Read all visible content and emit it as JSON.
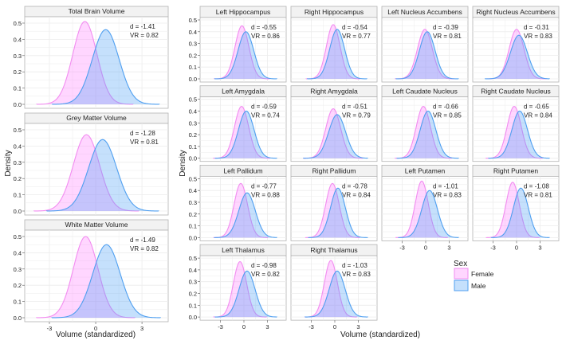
{
  "chart_data": {
    "type": "area",
    "subtype": "density, faceted",
    "xlabel": "Volume (standardized)",
    "ylabel": "Density",
    "x_ticks": [
      "-3",
      "0",
      "3"
    ],
    "y_ticks": [
      "0.0",
      "0.1",
      "0.2",
      "0.3",
      "0.4",
      "0.5"
    ],
    "ylim": [
      0,
      0.55
    ],
    "grid": true,
    "legend": {
      "title": "Sex",
      "placement": "bottom-right",
      "entries": [
        {
          "name": "Female",
          "fill": "#ff80ff",
          "stroke": "#f28cf0"
        },
        {
          "name": "Male",
          "fill": "#4aa0f5",
          "stroke": "#4f9ff0"
        }
      ]
    },
    "global_panels": [
      {
        "title": "Total Brain Volume",
        "d": "d = -1.41",
        "vr": "VR = 0.82",
        "female": {
          "mode": -0.7,
          "peak": 0.51
        },
        "male": {
          "mode": 0.65,
          "peak": 0.46
        }
      },
      {
        "title": "Grey Matter Volume",
        "d": "d = -1.28",
        "vr": "VR = 0.81",
        "female": {
          "mode": -0.6,
          "peak": 0.47
        },
        "male": {
          "mode": 0.45,
          "peak": 0.44
        }
      },
      {
        "title": "White Matter Volume",
        "d": "d = -1.49",
        "vr": "VR = 0.82",
        "female": {
          "mode": -0.65,
          "peak": 0.5
        },
        "male": {
          "mode": 0.7,
          "peak": 0.45
        }
      }
    ],
    "subcortical_panels": [
      {
        "title": "Left Hippocampus",
        "d": "d = -0.55",
        "vr": "VR = 0.86",
        "female": {
          "mode": -0.25,
          "peak": 0.45
        },
        "male": {
          "mode": 0.25,
          "peak": 0.4
        }
      },
      {
        "title": "Right Hippocampus",
        "d": "d = -0.54",
        "vr": "VR = 0.77",
        "female": {
          "mode": -0.2,
          "peak": 0.46
        },
        "male": {
          "mode": 0.3,
          "peak": 0.42
        }
      },
      {
        "title": "Left Nucleus Accumbens",
        "d": "d = -0.39",
        "vr": "VR = 0.81",
        "female": {
          "mode": -0.1,
          "peak": 0.42
        },
        "male": {
          "mode": 0.2,
          "peak": 0.4
        }
      },
      {
        "title": "Right Nucleus Accumbens",
        "d": "d = -0.31",
        "vr": "VR = 0.83",
        "female": {
          "mode": 0.0,
          "peak": 0.42
        },
        "male": {
          "mode": 0.3,
          "peak": 0.37
        }
      },
      {
        "title": "Left Amygdala",
        "d": "d = -0.59",
        "vr": "VR = 0.74",
        "female": {
          "mode": -0.3,
          "peak": 0.44
        },
        "male": {
          "mode": 0.3,
          "peak": 0.4
        }
      },
      {
        "title": "Right Amygdala",
        "d": "d = -0.51",
        "vr": "VR = 0.79",
        "female": {
          "mode": -0.2,
          "peak": 0.42
        },
        "male": {
          "mode": 0.3,
          "peak": 0.37
        }
      },
      {
        "title": "Left Caudate Nucleus",
        "d": "d = -0.66",
        "vr": "VR = 0.85",
        "female": {
          "mode": -0.3,
          "peak": 0.44
        },
        "male": {
          "mode": 0.3,
          "peak": 0.4
        }
      },
      {
        "title": "Right Caudate Nucleus",
        "d": "d = -0.65",
        "vr": "VR = 0.84",
        "female": {
          "mode": -0.3,
          "peak": 0.44
        },
        "male": {
          "mode": 0.4,
          "peak": 0.4
        }
      },
      {
        "title": "Left Pallidum",
        "d": "d = -0.77",
        "vr": "VR = 0.88",
        "female": {
          "mode": -0.4,
          "peak": 0.46
        },
        "male": {
          "mode": 0.4,
          "peak": 0.38
        }
      },
      {
        "title": "Right Pallidum",
        "d": "d = -0.78",
        "vr": "VR = 0.84",
        "female": {
          "mode": -0.3,
          "peak": 0.46
        },
        "male": {
          "mode": 0.4,
          "peak": 0.42
        }
      },
      {
        "title": "Left Putamen",
        "d": "d = -1.01",
        "vr": "VR = 0.83",
        "female": {
          "mode": -0.5,
          "peak": 0.48
        },
        "male": {
          "mode": 0.5,
          "peak": 0.4
        }
      },
      {
        "title": "Right Putamen",
        "d": "d = -1.08",
        "vr": "VR = 0.81",
        "female": {
          "mode": -0.5,
          "peak": 0.47
        },
        "male": {
          "mode": 0.55,
          "peak": 0.42
        }
      },
      {
        "title": "Left Thalamus",
        "d": "d = -0.98",
        "vr": "VR = 0.82",
        "female": {
          "mode": -0.5,
          "peak": 0.47
        },
        "male": {
          "mode": 0.4,
          "peak": 0.39
        }
      },
      {
        "title": "Right Thalamus",
        "d": "d = -1.03",
        "vr": "VR = 0.83",
        "female": {
          "mode": -0.5,
          "peak": 0.48
        },
        "male": {
          "mode": 0.3,
          "peak": 0.39
        }
      }
    ]
  }
}
